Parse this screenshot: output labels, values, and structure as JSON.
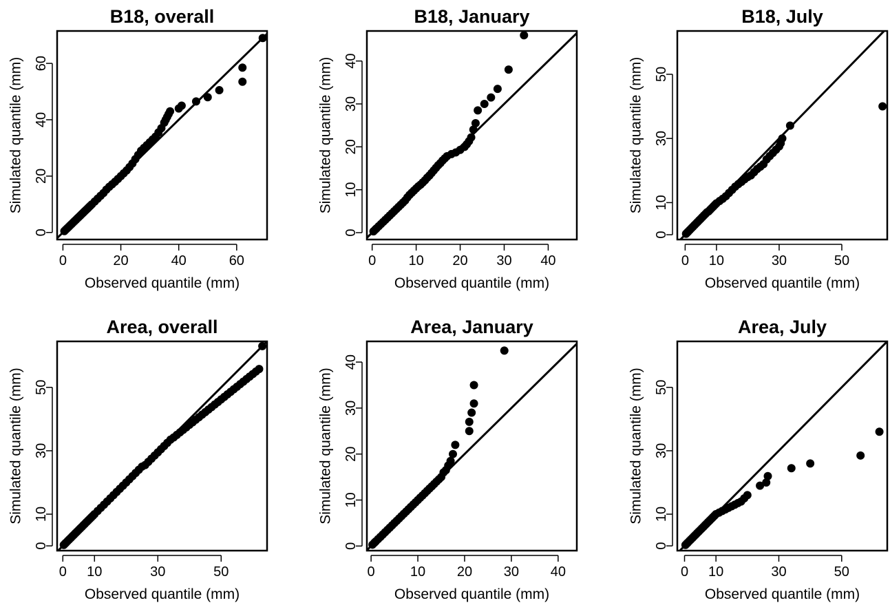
{
  "figure": {
    "colors": {
      "ink": "#000000",
      "background": "#ffffff"
    }
  },
  "chart_data": [
    {
      "type": "scatter",
      "title": "B18, overall",
      "xlabel": "Observed quantile (mm)",
      "ylabel": "Simulated quantile (mm)",
      "xlim": [
        -2,
        70.5
      ],
      "ylim": [
        -2.5,
        71.5
      ],
      "x_ticks": [
        0,
        20,
        40,
        60
      ],
      "x_tick_labels": [
        "0",
        "20",
        "40",
        "60"
      ],
      "y_ticks": [
        0,
        20,
        40,
        60
      ],
      "y_tick_labels": [
        "0",
        "20",
        "40",
        "60"
      ],
      "reference_line": "y = x",
      "grid": false,
      "x": [
        0.5,
        1,
        1.5,
        2,
        2.5,
        3,
        3.5,
        4,
        4.5,
        5,
        5.5,
        6,
        6.5,
        7,
        7.5,
        8,
        8.5,
        9,
        9.5,
        10,
        11,
        12,
        13,
        14,
        15,
        16,
        17,
        18,
        19,
        20,
        21,
        22,
        23,
        24,
        25,
        26,
        27,
        28,
        29,
        30,
        31,
        32,
        33,
        34,
        35,
        35.5,
        36,
        36.5,
        37,
        40,
        41,
        46,
        50,
        54,
        62,
        62,
        69
      ],
      "y": [
        0.5,
        1,
        1.5,
        2,
        2.5,
        3,
        3.5,
        4,
        4.5,
        5,
        5.5,
        6,
        6.5,
        7,
        7.5,
        8,
        8.5,
        9,
        9.5,
        10,
        11,
        12,
        13,
        14,
        15.2,
        16.2,
        17.1,
        18,
        19,
        20,
        21,
        22,
        23.2,
        24.5,
        26,
        27.5,
        29,
        30,
        31,
        32,
        33,
        34,
        35.5,
        37,
        39,
        40,
        41,
        42,
        43,
        44,
        45,
        46.5,
        48,
        50.5,
        53.5,
        58.5,
        69
      ]
    },
    {
      "type": "scatter",
      "title": "B18, January",
      "xlabel": "Observed quantile (mm)",
      "ylabel": "Simulated quantile (mm)",
      "xlim": [
        -1.2,
        46.5
      ],
      "ylim": [
        -1.6,
        47
      ],
      "x_ticks": [
        0,
        10,
        20,
        30,
        40
      ],
      "x_tick_labels": [
        "0",
        "10",
        "20",
        "30",
        "40"
      ],
      "y_ticks": [
        0,
        10,
        20,
        30,
        40
      ],
      "y_tick_labels": [
        "0",
        "10",
        "20",
        "30",
        "40"
      ],
      "reference_line": "y = x",
      "grid": false,
      "x": [
        0.3,
        0.7,
        1,
        1.5,
        2,
        2.5,
        3,
        3.5,
        4,
        4.5,
        5,
        5.5,
        6,
        6.5,
        7,
        7.5,
        8,
        8.5,
        9,
        9.5,
        10,
        10.5,
        11,
        11.5,
        12,
        12.5,
        13,
        13.5,
        14,
        14.5,
        15,
        15.5,
        16,
        16.5,
        17,
        18,
        19,
        20,
        21,
        21.5,
        22,
        22.5,
        23,
        23.5,
        24,
        25.5,
        27,
        28.5,
        31,
        34.5
      ],
      "y": [
        0.3,
        0.7,
        1,
        1.5,
        2,
        2.5,
        3,
        3.5,
        4,
        4.5,
        5,
        5.5,
        6,
        6.5,
        7,
        7.5,
        8.2,
        8.8,
        9.3,
        9.8,
        10.3,
        10.8,
        11.2,
        11.7,
        12.2,
        12.8,
        13.3,
        13.9,
        14.5,
        15.1,
        15.7,
        16.2,
        16.8,
        17.3,
        17.8,
        18.3,
        18.7,
        19.3,
        20,
        20.6,
        21.3,
        22.2,
        24,
        25.5,
        28.5,
        30,
        31.5,
        33.5,
        38,
        46
      ]
    },
    {
      "type": "scatter",
      "title": "B18, July",
      "xlabel": "Observed quantile (mm)",
      "ylabel": "Simulated quantile (mm)",
      "xlim": [
        -2.5,
        64.5
      ],
      "ylim": [
        -1.5,
        63.5
      ],
      "x_ticks": [
        0,
        10,
        30,
        50
      ],
      "x_tick_labels": [
        "0",
        "10",
        "30",
        "50"
      ],
      "y_ticks": [
        0,
        10,
        30,
        50
      ],
      "y_tick_labels": [
        "0",
        "10",
        "30",
        "50"
      ],
      "reference_line": "y = x",
      "grid": false,
      "x": [
        0.3,
        0.7,
        1,
        1.5,
        2,
        2.5,
        3,
        3.5,
        4,
        4.5,
        5,
        5.5,
        6,
        6.5,
        7,
        7.5,
        8,
        8.5,
        9,
        9.5,
        10,
        11,
        12,
        13,
        14,
        15,
        16,
        17,
        18,
        19,
        20,
        21,
        22,
        23,
        24,
        25,
        26,
        27,
        28,
        29,
        30,
        30.5,
        31,
        33.5,
        63
      ],
      "y": [
        0.3,
        0.7,
        1,
        1.5,
        2,
        2.5,
        3,
        3.5,
        4,
        4.5,
        5,
        5.5,
        6,
        6.5,
        7,
        7.3,
        7.8,
        8.3,
        8.8,
        9.3,
        9.8,
        10.5,
        11.2,
        12,
        13,
        14,
        15,
        15.8,
        16.5,
        17.3,
        18,
        18.5,
        19.5,
        20.5,
        21.2,
        22,
        23.5,
        24.5,
        25.5,
        26.5,
        27.5,
        28.5,
        30,
        34,
        40
      ]
    },
    {
      "type": "scatter",
      "title": "Area, overall",
      "xlabel": "Observed quantile (mm)",
      "ylabel": "Simulated quantile (mm)",
      "xlim": [
        -1.8,
        64.5
      ],
      "ylim": [
        -1.5,
        64.5
      ],
      "x_ticks": [
        0,
        10,
        30,
        50
      ],
      "x_tick_labels": [
        "0",
        "10",
        "30",
        "50"
      ],
      "y_ticks": [
        0,
        10,
        30,
        50
      ],
      "y_tick_labels": [
        "0",
        "10",
        "30",
        "50"
      ],
      "reference_line": "y = x",
      "grid": false,
      "x": [
        0.3,
        0.7,
        1,
        1.5,
        2,
        2.5,
        3,
        3.5,
        4,
        4.5,
        5,
        5.5,
        6,
        6.5,
        7,
        7.5,
        8,
        8.5,
        9,
        9.5,
        10,
        11,
        12,
        13,
        14,
        15,
        16,
        17,
        18,
        19,
        20,
        21,
        22,
        23,
        24,
        25,
        26,
        27,
        28,
        29,
        30,
        31,
        32,
        33,
        34,
        35,
        36,
        37,
        38,
        39,
        40,
        41,
        42,
        43,
        44,
        45,
        46,
        47,
        48,
        49,
        50,
        51,
        52,
        53,
        54,
        55,
        56,
        57,
        58,
        59,
        60,
        61,
        62,
        63
      ],
      "y": [
        0.3,
        0.7,
        1,
        1.5,
        2,
        2.5,
        3,
        3.5,
        4,
        4.5,
        5,
        5.5,
        6,
        6.5,
        7,
        7.5,
        8,
        8.5,
        9,
        9.5,
        10,
        11,
        12,
        13,
        14,
        15,
        16,
        17,
        18,
        19,
        20,
        21,
        22,
        23,
        24,
        25,
        25.5,
        26.5,
        27.5,
        28.5,
        29.5,
        30.5,
        31.5,
        32.5,
        33.5,
        34.2,
        35,
        35.8,
        36.6,
        37.4,
        38.2,
        39,
        39.8,
        40.6,
        41.4,
        42.2,
        43,
        43.8,
        44.6,
        45.4,
        46.2,
        47,
        47.8,
        48.6,
        49.4,
        50.2,
        51,
        51.8,
        52.6,
        53.4,
        54.2,
        55,
        55.8,
        63
      ]
    },
    {
      "type": "scatter",
      "title": "Area, January",
      "xlabel": "Observed quantile (mm)",
      "ylabel": "Simulated quantile (mm)",
      "xlim": [
        -0.9,
        44
      ],
      "ylim": [
        -1,
        44.5
      ],
      "x_ticks": [
        0,
        10,
        20,
        30,
        40
      ],
      "x_tick_labels": [
        "0",
        "10",
        "20",
        "30",
        "40"
      ],
      "y_ticks": [
        0,
        10,
        20,
        30,
        40
      ],
      "y_tick_labels": [
        "0",
        "10",
        "20",
        "30",
        "40"
      ],
      "reference_line": "y = x",
      "grid": false,
      "x": [
        0.3,
        0.7,
        1,
        1.5,
        2,
        2.5,
        3,
        3.5,
        4,
        4.5,
        5,
        5.5,
        6,
        6.5,
        7,
        7.5,
        8,
        8.5,
        9,
        9.5,
        10,
        10.5,
        11,
        11.5,
        12,
        12.5,
        13,
        13.5,
        14,
        14.5,
        15,
        15.5,
        16,
        16.5,
        17,
        17.5,
        18,
        21,
        21,
        21.5,
        22,
        22,
        28.5
      ],
      "y": [
        0.3,
        0.7,
        1,
        1.5,
        2,
        2.5,
        3,
        3.5,
        4,
        4.5,
        5,
        5.5,
        6,
        6.5,
        7,
        7.5,
        8,
        8.5,
        9,
        9.5,
        10,
        10.5,
        11,
        11.5,
        12,
        12.5,
        13,
        13.5,
        14,
        14.5,
        15,
        16,
        16.5,
        17.5,
        18.5,
        20,
        22,
        25,
        27,
        29,
        31,
        35,
        42.5
      ]
    },
    {
      "type": "scatter",
      "title": "Area, July",
      "xlabel": "Observed quantile (mm)",
      "ylabel": "Simulated quantile (mm)",
      "xlim": [
        -2.3,
        64.5
      ],
      "ylim": [
        -1.5,
        64.5
      ],
      "x_ticks": [
        0,
        10,
        30,
        50
      ],
      "x_tick_labels": [
        "0",
        "10",
        "30",
        "50"
      ],
      "y_ticks": [
        0,
        10,
        30,
        50
      ],
      "y_tick_labels": [
        "0",
        "10",
        "30",
        "50"
      ],
      "reference_line": "y = x",
      "grid": false,
      "x": [
        0.3,
        0.7,
        1,
        1.5,
        2,
        2.5,
        3,
        3.5,
        4,
        4.5,
        5,
        5.5,
        6,
        6.5,
        7,
        7.5,
        8,
        8.5,
        9,
        9.5,
        10,
        11,
        12,
        13,
        14,
        15,
        16,
        17,
        18,
        19,
        20,
        24,
        26,
        26.5,
        34,
        40,
        56,
        62
      ],
      "y": [
        0.3,
        0.7,
        1,
        1.5,
        2,
        2.5,
        3,
        3.5,
        4,
        4.5,
        5,
        5.5,
        6,
        6.5,
        7,
        7.5,
        8,
        8.5,
        9,
        9.5,
        10,
        10.5,
        11,
        11.5,
        12,
        12.5,
        13,
        13.5,
        14,
        15,
        16,
        19,
        20,
        22,
        24.5,
        26,
        28.5,
        36
      ]
    }
  ]
}
